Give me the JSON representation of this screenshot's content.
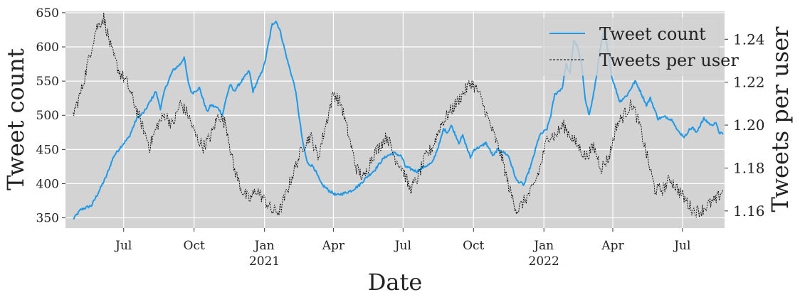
{
  "chart_data": {
    "type": "line",
    "xlabel": "Date",
    "ylabel_left": "Tweet count",
    "ylabel_right": "Tweets per user",
    "grid": true,
    "background": "#d3d3d3",
    "legend_position": "top-right",
    "x_range": [
      "2020-04-16",
      "2022-08-25"
    ],
    "y_left_range": [
      335,
      652
    ],
    "y_right_range": [
      1.152,
      1.253
    ],
    "x_ticks": [
      {
        "date": "2020-07-01",
        "label": "Jul",
        "year": ""
      },
      {
        "date": "2020-10-01",
        "label": "Oct",
        "year": ""
      },
      {
        "date": "2021-01-01",
        "label": "Jan",
        "year": "2021"
      },
      {
        "date": "2021-04-01",
        "label": "Apr",
        "year": ""
      },
      {
        "date": "2021-07-01",
        "label": "Jul",
        "year": ""
      },
      {
        "date": "2021-10-01",
        "label": "Oct",
        "year": ""
      },
      {
        "date": "2022-01-01",
        "label": "Jan",
        "year": "2022"
      },
      {
        "date": "2022-04-01",
        "label": "Apr",
        "year": ""
      },
      {
        "date": "2022-07-01",
        "label": "Jul",
        "year": ""
      }
    ],
    "y_left_ticks": [
      350,
      400,
      450,
      500,
      550,
      600,
      650
    ],
    "y_right_ticks": [
      "1.16",
      "1.18",
      "1.20",
      "1.22",
      "1.24"
    ],
    "series": [
      {
        "name": "Tweet count",
        "axis": "left",
        "color": "#1f9ae8",
        "style": "solid",
        "points": [
          [
            "2020-04-26",
            348
          ],
          [
            "2020-05-06",
            362
          ],
          [
            "2020-05-20",
            368
          ],
          [
            "2020-05-28",
            385
          ],
          [
            "2020-06-08",
            410
          ],
          [
            "2020-06-18",
            440
          ],
          [
            "2020-06-28",
            455
          ],
          [
            "2020-07-08",
            468
          ],
          [
            "2020-07-18",
            495
          ],
          [
            "2020-07-28",
            505
          ],
          [
            "2020-08-07",
            525
          ],
          [
            "2020-08-12",
            535
          ],
          [
            "2020-08-18",
            510
          ],
          [
            "2020-08-24",
            538
          ],
          [
            "2020-09-03",
            565
          ],
          [
            "2020-09-13",
            575
          ],
          [
            "2020-09-18",
            585
          ],
          [
            "2020-09-23",
            550
          ],
          [
            "2020-09-28",
            532
          ],
          [
            "2020-10-08",
            540
          ],
          [
            "2020-10-18",
            505
          ],
          [
            "2020-10-23",
            515
          ],
          [
            "2020-11-02",
            510
          ],
          [
            "2020-11-07",
            500
          ],
          [
            "2020-11-12",
            525
          ],
          [
            "2020-11-17",
            545
          ],
          [
            "2020-11-22",
            535
          ],
          [
            "2020-12-02",
            550
          ],
          [
            "2020-12-12",
            565
          ],
          [
            "2020-12-17",
            535
          ],
          [
            "2020-12-27",
            560
          ],
          [
            "2021-01-01",
            575
          ],
          [
            "2021-01-11",
            633
          ],
          [
            "2021-01-16",
            638
          ],
          [
            "2021-01-21",
            625
          ],
          [
            "2021-01-31",
            580
          ],
          [
            "2021-02-10",
            540
          ],
          [
            "2021-02-20",
            460
          ],
          [
            "2021-02-26",
            430
          ],
          [
            "2021-03-06",
            425
          ],
          [
            "2021-03-16",
            400
          ],
          [
            "2021-03-26",
            390
          ],
          [
            "2021-04-05",
            383
          ],
          [
            "2021-04-15",
            386
          ],
          [
            "2021-04-25",
            390
          ],
          [
            "2021-05-05",
            398
          ],
          [
            "2021-05-15",
            410
          ],
          [
            "2021-05-25",
            420
          ],
          [
            "2021-06-04",
            435
          ],
          [
            "2021-06-09",
            440
          ],
          [
            "2021-06-19",
            445
          ],
          [
            "2021-06-29",
            440
          ],
          [
            "2021-07-04",
            425
          ],
          [
            "2021-07-14",
            420
          ],
          [
            "2021-07-19",
            418
          ],
          [
            "2021-07-29",
            425
          ],
          [
            "2021-08-08",
            430
          ],
          [
            "2021-08-18",
            460
          ],
          [
            "2021-08-23",
            480
          ],
          [
            "2021-08-28",
            475
          ],
          [
            "2021-09-02",
            485
          ],
          [
            "2021-09-12",
            460
          ],
          [
            "2021-09-17",
            470
          ],
          [
            "2021-09-27",
            438
          ],
          [
            "2021-10-02",
            450
          ],
          [
            "2021-10-12",
            455
          ],
          [
            "2021-10-17",
            460
          ],
          [
            "2021-10-27",
            440
          ],
          [
            "2021-11-01",
            450
          ],
          [
            "2021-11-11",
            445
          ],
          [
            "2021-11-16",
            440
          ],
          [
            "2021-11-26",
            405
          ],
          [
            "2021-12-06",
            398
          ],
          [
            "2021-12-16",
            430
          ],
          [
            "2021-12-26",
            470
          ],
          [
            "2022-01-05",
            480
          ],
          [
            "2022-01-10",
            500
          ],
          [
            "2022-01-15",
            530
          ],
          [
            "2022-01-25",
            540
          ],
          [
            "2022-01-30",
            575
          ],
          [
            "2022-02-04",
            560
          ],
          [
            "2022-02-09",
            610
          ],
          [
            "2022-02-14",
            600
          ],
          [
            "2022-02-19",
            575
          ],
          [
            "2022-02-24",
            525
          ],
          [
            "2022-03-01",
            500
          ],
          [
            "2022-03-06",
            525
          ],
          [
            "2022-03-11",
            560
          ],
          [
            "2022-03-16",
            600
          ],
          [
            "2022-03-21",
            625
          ],
          [
            "2022-03-31",
            555
          ],
          [
            "2022-04-10",
            520
          ],
          [
            "2022-04-20",
            530
          ],
          [
            "2022-04-30",
            550
          ],
          [
            "2022-05-05",
            540
          ],
          [
            "2022-05-15",
            515
          ],
          [
            "2022-05-20",
            525
          ],
          [
            "2022-05-30",
            495
          ],
          [
            "2022-06-09",
            498
          ],
          [
            "2022-06-19",
            492
          ],
          [
            "2022-06-24",
            478
          ],
          [
            "2022-07-04",
            468
          ],
          [
            "2022-07-09",
            478
          ],
          [
            "2022-07-14",
            482
          ],
          [
            "2022-07-19",
            475
          ],
          [
            "2022-07-29",
            495
          ],
          [
            "2022-08-08",
            485
          ],
          [
            "2022-08-13",
            490
          ],
          [
            "2022-08-18",
            475
          ],
          [
            "2022-08-23",
            472
          ]
        ]
      },
      {
        "name": "Tweets per user",
        "axis": "right",
        "color": "#000000",
        "style": "dashed",
        "points": [
          [
            "2020-04-26",
            1.205
          ],
          [
            "2020-05-06",
            1.215
          ],
          [
            "2020-05-16",
            1.23
          ],
          [
            "2020-05-26",
            1.245
          ],
          [
            "2020-06-05",
            1.25
          ],
          [
            "2020-06-15",
            1.235
          ],
          [
            "2020-06-25",
            1.225
          ],
          [
            "2020-07-05",
            1.22
          ],
          [
            "2020-07-15",
            1.21
          ],
          [
            "2020-07-25",
            1.2
          ],
          [
            "2020-08-04",
            1.19
          ],
          [
            "2020-08-14",
            1.2
          ],
          [
            "2020-08-24",
            1.205
          ],
          [
            "2020-09-03",
            1.2
          ],
          [
            "2020-09-13",
            1.21
          ],
          [
            "2020-09-23",
            1.205
          ],
          [
            "2020-10-03",
            1.195
          ],
          [
            "2020-10-13",
            1.19
          ],
          [
            "2020-10-23",
            1.195
          ],
          [
            "2020-11-02",
            1.205
          ],
          [
            "2020-11-12",
            1.2
          ],
          [
            "2020-11-22",
            1.18
          ],
          [
            "2020-12-02",
            1.17
          ],
          [
            "2020-12-12",
            1.165
          ],
          [
            "2020-12-22",
            1.17
          ],
          [
            "2021-01-01",
            1.165
          ],
          [
            "2021-01-11",
            1.16
          ],
          [
            "2021-01-21",
            1.16
          ],
          [
            "2021-01-31",
            1.17
          ],
          [
            "2021-02-10",
            1.18
          ],
          [
            "2021-02-20",
            1.19
          ],
          [
            "2021-03-02",
            1.195
          ],
          [
            "2021-03-12",
            1.185
          ],
          [
            "2021-03-22",
            1.2
          ],
          [
            "2021-04-01",
            1.215
          ],
          [
            "2021-04-11",
            1.21
          ],
          [
            "2021-04-21",
            1.195
          ],
          [
            "2021-05-01",
            1.18
          ],
          [
            "2021-05-11",
            1.175
          ],
          [
            "2021-05-21",
            1.185
          ],
          [
            "2021-05-31",
            1.19
          ],
          [
            "2021-06-10",
            1.195
          ],
          [
            "2021-06-20",
            1.185
          ],
          [
            "2021-06-30",
            1.18
          ],
          [
            "2021-07-10",
            1.17
          ],
          [
            "2021-07-20",
            1.175
          ],
          [
            "2021-07-30",
            1.185
          ],
          [
            "2021-08-09",
            1.19
          ],
          [
            "2021-08-19",
            1.2
          ],
          [
            "2021-08-29",
            1.205
          ],
          [
            "2021-09-08",
            1.21
          ],
          [
            "2021-09-18",
            1.215
          ],
          [
            "2021-09-28",
            1.22
          ],
          [
            "2021-10-08",
            1.215
          ],
          [
            "2021-10-18",
            1.205
          ],
          [
            "2021-10-28",
            1.195
          ],
          [
            "2021-11-07",
            1.185
          ],
          [
            "2021-11-17",
            1.17
          ],
          [
            "2021-11-27",
            1.16
          ],
          [
            "2021-12-07",
            1.165
          ],
          [
            "2021-12-17",
            1.17
          ],
          [
            "2021-12-27",
            1.18
          ],
          [
            "2022-01-06",
            1.195
          ],
          [
            "2022-01-16",
            1.195
          ],
          [
            "2022-01-26",
            1.2
          ],
          [
            "2022-02-05",
            1.195
          ],
          [
            "2022-02-15",
            1.19
          ],
          [
            "2022-02-25",
            1.185
          ],
          [
            "2022-03-07",
            1.19
          ],
          [
            "2022-03-17",
            1.18
          ],
          [
            "2022-03-27",
            1.185
          ],
          [
            "2022-04-06",
            1.2
          ],
          [
            "2022-04-16",
            1.205
          ],
          [
            "2022-04-26",
            1.21
          ],
          [
            "2022-05-06",
            1.2
          ],
          [
            "2022-05-16",
            1.185
          ],
          [
            "2022-05-26",
            1.17
          ],
          [
            "2022-06-05",
            1.17
          ],
          [
            "2022-06-15",
            1.175
          ],
          [
            "2022-06-25",
            1.17
          ],
          [
            "2022-07-05",
            1.165
          ],
          [
            "2022-07-15",
            1.16
          ],
          [
            "2022-07-25",
            1.16
          ],
          [
            "2022-08-04",
            1.163
          ],
          [
            "2022-08-14",
            1.165
          ],
          [
            "2022-08-23",
            1.17
          ]
        ]
      }
    ]
  }
}
